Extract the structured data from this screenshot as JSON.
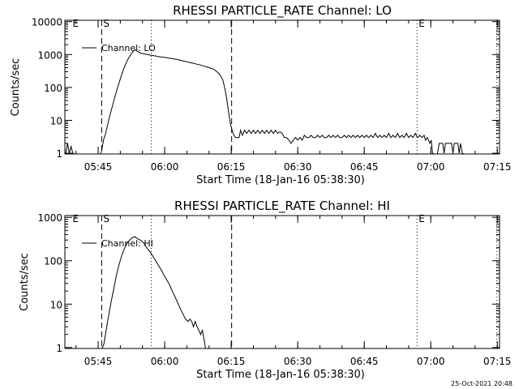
{
  "timestamp": "25-Oct-2021 20:48",
  "chart_data": [
    {
      "type": "line",
      "title": "RHESSI PARTICLE_RATE Channel: LO",
      "xlabel": "Start Time (18-Jan-16 05:38:30)",
      "ylabel": "Counts/sec",
      "y_scale": "log",
      "ylim": [
        0.95,
        11000
      ],
      "xlim_minutes": [
        -1,
        97
      ],
      "x_ticks": [
        {
          "minutes": 6.5,
          "label": "05:45"
        },
        {
          "minutes": 21.5,
          "label": "06:00"
        },
        {
          "minutes": 36.5,
          "label": "06:15"
        },
        {
          "minutes": 51.5,
          "label": "06:30"
        },
        {
          "minutes": 66.5,
          "label": "06:45"
        },
        {
          "minutes": 81.5,
          "label": "07:00"
        },
        {
          "minutes": 96.5,
          "label": "07:15"
        }
      ],
      "y_ticks": [
        {
          "value": 1,
          "label": "1"
        },
        {
          "value": 10,
          "label": "10"
        },
        {
          "value": 100,
          "label": "100"
        },
        {
          "value": 1000,
          "label": "1000"
        },
        {
          "value": 10000,
          "label": "10000"
        }
      ],
      "legend": {
        "label": "Channel: LO",
        "position": "top-left"
      },
      "markers": [
        {
          "label": "E",
          "minutes": 0,
          "style": "none"
        },
        {
          "label": "S",
          "minutes": 7.3,
          "style": "dashed"
        },
        {
          "label": "",
          "minutes": 18.5,
          "style": "dotted"
        },
        {
          "label": "",
          "minutes": 36.6,
          "style": "dashed"
        },
        {
          "label": "E",
          "minutes": 78.4,
          "style": "dotted"
        },
        {
          "label": "",
          "minutes": 96.4,
          "style": "dotted"
        }
      ],
      "series": [
        {
          "values": [
            [
              -0.8,
              1
            ],
            [
              -0.4,
              2
            ],
            [
              0,
              1
            ],
            [
              0.4,
              1.6
            ],
            [
              0.8,
              1
            ],
            [
              1.2,
              0.95
            ],
            [
              7,
              0.95
            ],
            [
              7.3,
              1.2
            ],
            [
              7.7,
              2.5
            ],
            [
              8.2,
              4
            ],
            [
              8.7,
              8
            ],
            [
              9.2,
              15
            ],
            [
              9.8,
              30
            ],
            [
              10.4,
              60
            ],
            [
              11,
              110
            ],
            [
              11.6,
              200
            ],
            [
              12.2,
              350
            ],
            [
              12.8,
              550
            ],
            [
              13.4,
              800
            ],
            [
              14,
              1050
            ],
            [
              14.4,
              1250
            ],
            [
              14.8,
              1400
            ],
            [
              15.2,
              1300
            ],
            [
              15.6,
              1200
            ],
            [
              16,
              1100
            ],
            [
              16.8,
              1050
            ],
            [
              17.6,
              1000
            ],
            [
              18.5,
              950
            ],
            [
              19.5,
              900
            ],
            [
              20.5,
              850
            ],
            [
              21.5,
              820
            ],
            [
              22.5,
              780
            ],
            [
              23.5,
              740
            ],
            [
              24.5,
              700
            ],
            [
              25.5,
              650
            ],
            [
              26.5,
              600
            ],
            [
              27.5,
              560
            ],
            [
              28.5,
              520
            ],
            [
              29.5,
              480
            ],
            [
              30.5,
              440
            ],
            [
              31.5,
              400
            ],
            [
              32.5,
              360
            ],
            [
              33.3,
              300
            ],
            [
              34,
              240
            ],
            [
              34.6,
              170
            ],
            [
              35.1,
              90
            ],
            [
              35.5,
              45
            ],
            [
              35.9,
              18
            ],
            [
              36.3,
              8
            ],
            [
              36.7,
              5
            ],
            [
              37.1,
              3.5
            ],
            [
              37.5,
              3
            ],
            [
              38.3,
              3
            ],
            [
              38.6,
              5
            ],
            [
              39,
              3.5
            ],
            [
              39.5,
              5
            ],
            [
              40,
              4
            ],
            [
              40.5,
              5
            ],
            [
              41,
              4
            ],
            [
              41.5,
              5
            ],
            [
              42,
              4
            ],
            [
              42.5,
              5
            ],
            [
              43,
              4
            ],
            [
              43.5,
              5
            ],
            [
              44,
              4
            ],
            [
              44.5,
              5
            ],
            [
              45,
              4
            ],
            [
              45.5,
              5
            ],
            [
              46,
              4
            ],
            [
              46.5,
              5
            ],
            [
              47,
              4
            ],
            [
              47.5,
              4.5
            ],
            [
              48,
              4
            ],
            [
              48.5,
              3
            ],
            [
              49,
              3
            ],
            [
              49.5,
              2.5
            ],
            [
              50,
              2
            ],
            [
              50.5,
              2.5
            ],
            [
              51,
              3
            ],
            [
              51.5,
              2.5
            ],
            [
              52,
              3
            ],
            [
              52.5,
              2.5
            ],
            [
              53,
              3.5
            ],
            [
              53.5,
              3
            ],
            [
              54,
              3
            ],
            [
              54.5,
              3.5
            ],
            [
              55,
              3
            ],
            [
              55.5,
              3
            ],
            [
              56,
              3.5
            ],
            [
              56.5,
              3
            ],
            [
              57,
              3.5
            ],
            [
              57.5,
              3
            ],
            [
              58,
              3
            ],
            [
              58.5,
              3.5
            ],
            [
              59,
              3
            ],
            [
              59.5,
              3.5
            ],
            [
              60,
              3
            ],
            [
              60.5,
              3.5
            ],
            [
              61,
              3
            ],
            [
              61.5,
              3
            ],
            [
              62,
              3.5
            ],
            [
              62.5,
              3
            ],
            [
              63,
              3.5
            ],
            [
              63.5,
              3
            ],
            [
              64,
              3.5
            ],
            [
              64.5,
              3
            ],
            [
              65,
              3.5
            ],
            [
              65.5,
              3
            ],
            [
              66,
              3.5
            ],
            [
              66.5,
              3
            ],
            [
              67,
              3.5
            ],
            [
              67.5,
              3
            ],
            [
              68,
              3.5
            ],
            [
              68.5,
              3
            ],
            [
              69,
              4
            ],
            [
              69.5,
              3
            ],
            [
              70,
              3.5
            ],
            [
              70.5,
              3
            ],
            [
              71,
              3.5
            ],
            [
              71.5,
              3
            ],
            [
              72,
              4
            ],
            [
              72.5,
              3
            ],
            [
              73,
              3.5
            ],
            [
              73.5,
              3
            ],
            [
              74,
              4
            ],
            [
              74.5,
              3
            ],
            [
              75,
              3.5
            ],
            [
              75.5,
              3
            ],
            [
              76,
              4
            ],
            [
              76.5,
              3
            ],
            [
              77,
              3.5
            ],
            [
              77.5,
              3
            ],
            [
              78,
              4
            ],
            [
              78.5,
              3
            ],
            [
              79,
              3.5
            ],
            [
              79.5,
              3
            ],
            [
              80,
              3.5
            ],
            [
              80.3,
              2.5
            ],
            [
              80.7,
              3
            ],
            [
              81,
              2.5
            ],
            [
              81.3,
              2
            ],
            [
              81.6,
              2.5
            ],
            [
              81.9,
              1
            ],
            [
              82.2,
              0.95
            ],
            [
              83,
              0.95
            ],
            [
              83.4,
              2
            ],
            [
              84.2,
              2
            ],
            [
              84.5,
              1
            ],
            [
              84.8,
              2
            ],
            [
              86.2,
              2
            ],
            [
              86.5,
              1
            ],
            [
              86.8,
              2
            ],
            [
              87.6,
              2
            ],
            [
              87.9,
              1
            ],
            [
              88.2,
              2
            ],
            [
              88.6,
              1
            ],
            [
              89,
              0.95
            ]
          ]
        }
      ]
    },
    {
      "type": "line",
      "title": "RHESSI PARTICLE_RATE Channel: HI",
      "xlabel": "Start Time (18-Jan-16 05:38:30)",
      "ylabel": "Counts/sec",
      "y_scale": "log",
      "ylim": [
        0.95,
        1100
      ],
      "xlim_minutes": [
        -1,
        97
      ],
      "x_ticks": [
        {
          "minutes": 6.5,
          "label": "05:45"
        },
        {
          "minutes": 21.5,
          "label": "06:00"
        },
        {
          "minutes": 36.5,
          "label": "06:15"
        },
        {
          "minutes": 51.5,
          "label": "06:30"
        },
        {
          "minutes": 66.5,
          "label": "06:45"
        },
        {
          "minutes": 81.5,
          "label": "07:00"
        },
        {
          "minutes": 96.5,
          "label": "07:15"
        }
      ],
      "y_ticks": [
        {
          "value": 1,
          "label": "1"
        },
        {
          "value": 10,
          "label": "10"
        },
        {
          "value": 100,
          "label": "100"
        },
        {
          "value": 1000,
          "label": "1000"
        }
      ],
      "legend": {
        "label": "Channel: HI",
        "position": "top-left"
      },
      "markers": [
        {
          "label": "E",
          "minutes": 0,
          "style": "none"
        },
        {
          "label": "S",
          "minutes": 7.3,
          "style": "dashed"
        },
        {
          "label": "",
          "minutes": 18.5,
          "style": "dotted"
        },
        {
          "label": "",
          "minutes": 36.6,
          "style": "dashed"
        },
        {
          "label": "E",
          "minutes": 78.4,
          "style": "dotted"
        },
        {
          "label": "",
          "minutes": 96.4,
          "style": "dotted"
        }
      ],
      "series": [
        {
          "values": [
            [
              7.4,
              0.95
            ],
            [
              7.8,
              1.2
            ],
            [
              8.3,
              2.5
            ],
            [
              8.8,
              5
            ],
            [
              9.4,
              11
            ],
            [
              10,
              22
            ],
            [
              10.6,
              45
            ],
            [
              11.2,
              80
            ],
            [
              11.8,
              130
            ],
            [
              12.4,
              190
            ],
            [
              13,
              250
            ],
            [
              13.6,
              300
            ],
            [
              14.2,
              340
            ],
            [
              14.8,
              360
            ],
            [
              15.4,
              320
            ],
            [
              16,
              300
            ],
            [
              16.6,
              270
            ],
            [
              17.2,
              220
            ],
            [
              17.8,
              180
            ],
            [
              18.4,
              150
            ],
            [
              19,
              120
            ],
            [
              19.6,
              95
            ],
            [
              20.2,
              75
            ],
            [
              20.8,
              60
            ],
            [
              21.4,
              45
            ],
            [
              22,
              36
            ],
            [
              22.6,
              28
            ],
            [
              23.2,
              20
            ],
            [
              23.8,
              15
            ],
            [
              24.4,
              11
            ],
            [
              25,
              8
            ],
            [
              25.6,
              6
            ],
            [
              26.2,
              4.5
            ],
            [
              26.8,
              4
            ],
            [
              27.2,
              4.5
            ],
            [
              27.6,
              4
            ],
            [
              28,
              3
            ],
            [
              28.4,
              4
            ],
            [
              28.8,
              3
            ],
            [
              29.2,
              2.5
            ],
            [
              29.6,
              2
            ],
            [
              30,
              2.5
            ],
            [
              30.4,
              1.5
            ],
            [
              30.7,
              0.95
            ]
          ]
        }
      ]
    }
  ]
}
